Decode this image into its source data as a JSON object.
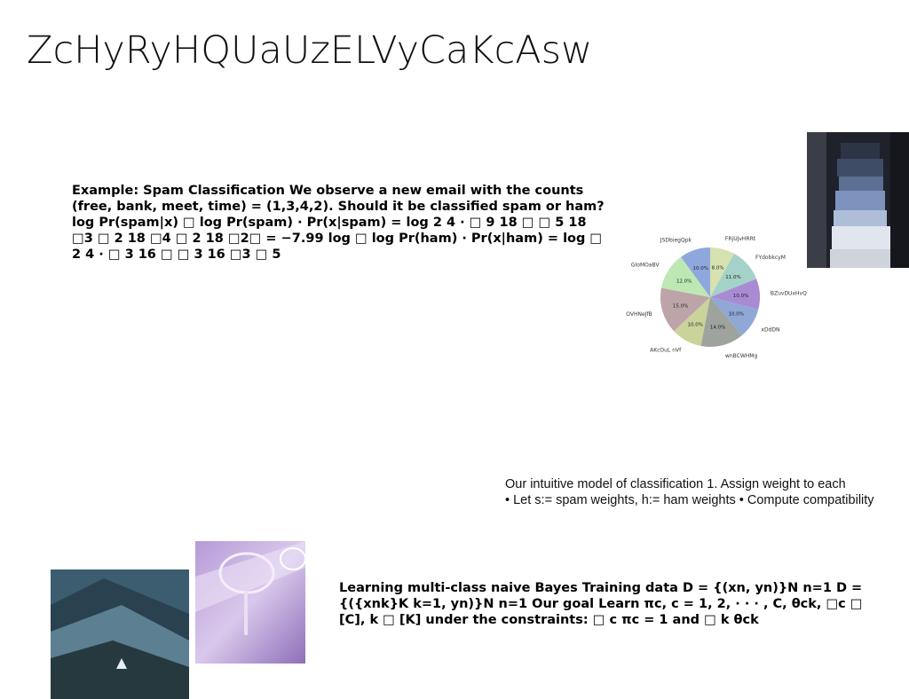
{
  "slide": {
    "title": "ZcHyRyHQUaUzELVyCaKcAsw",
    "spam_example": "Example: Spam Classification We observe a new email with the counts (free, bank, meet, time) = (1,3,4,2). Should it be classified spam or ham? log Pr(spam|x) □ log Pr(spam) · Pr(x|spam) = log 2 4 · □ 9 18 □ □ 5 18 □3 □ 2 18 □4 □ 2 18 □2□ = −7.99 log □ log Pr(ham) · Pr(x|ham) = log □ 2 4 · □ 3 16 □ □ 3 16 □3 □ 5",
    "intuitive_line1": "Our intuitive model of classification 1. Assign weight to each",
    "intuitive_line2": "• Let s:= spam weights, h:= ham weights • Compute compatibility",
    "naive_bayes": "Learning multi-class naive Bayes Training data D = {(xn, yn)}N n=1 D = {({xnk}K k=1, yn)}N n=1 Our goal Learn πc, c = 1, 2, · · · , C, θck, □c □ [C], k □ [K] under the constraints: □ c πc = 1 and □ k θck"
  },
  "chart_data": {
    "type": "pie",
    "title": "",
    "labels": [
      "FRjUJvHRRt",
      "FYdobkcyM",
      "BZuvDUxHvQ",
      "xDdDN",
      "wnBCWHMg",
      "AKcOuL nVf",
      "OVHNeJfB",
      "GIoMOaBV",
      "JSDbiegQpk"
    ],
    "values": [
      8.0,
      11.0,
      10.0,
      10.0,
      14.0,
      10.0,
      15.0,
      12.0,
      10.0
    ],
    "percent_labels": [
      "8.0%",
      "11.0%",
      "10.0%",
      "10.0%",
      "14.0%",
      "10.0%",
      "15.0%",
      "12.0%",
      "10.0%"
    ],
    "colors": [
      "#d6e2b0",
      "#a4d2c8",
      "#a98bd4",
      "#8fa8d6",
      "#9ea39d",
      "#c9d39a",
      "#bda4a8",
      "#bde8b4",
      "#8ea7dc"
    ]
  },
  "images": {
    "books": "books-photo",
    "mountain": "mountain-photo",
    "glass": "glass-photo"
  }
}
